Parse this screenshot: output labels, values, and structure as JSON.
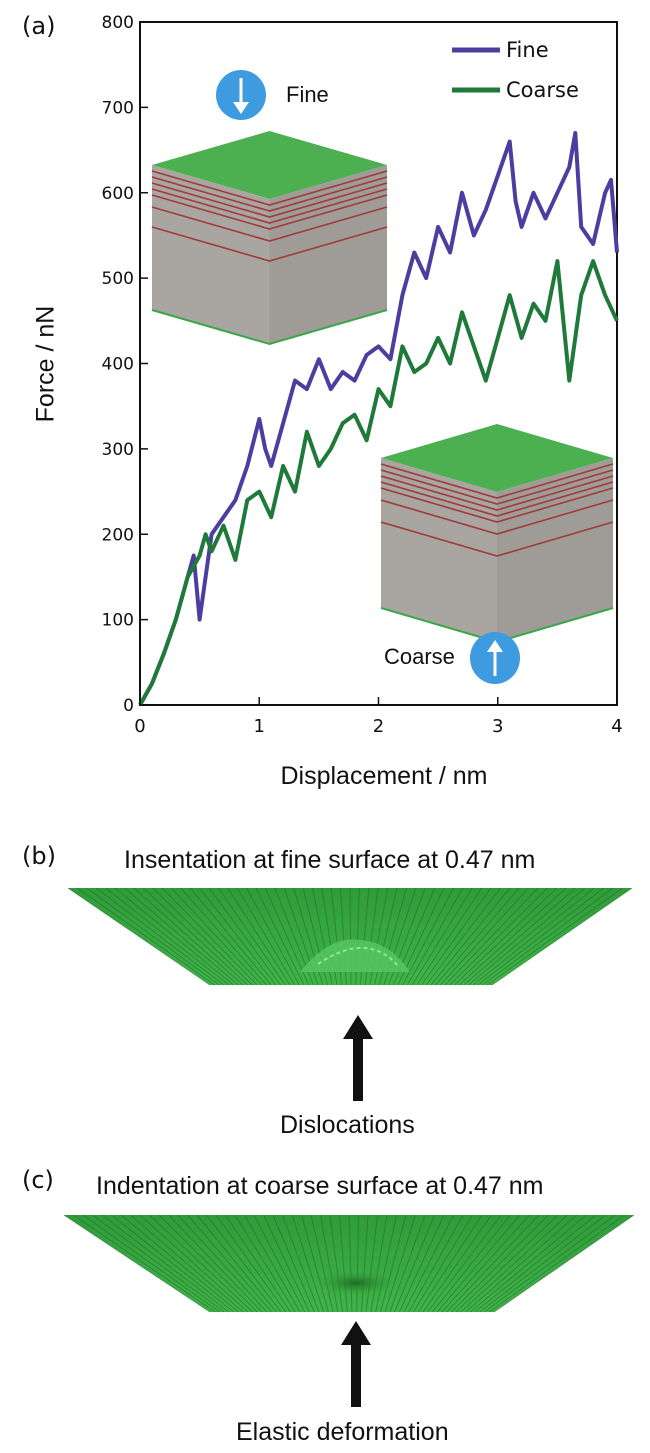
{
  "panels": {
    "a": {
      "label": "(a)"
    },
    "b": {
      "label": "(b)",
      "caption": "Insentation at fine surface at 0.47 nm",
      "arrow_label": "Dislocations"
    },
    "c": {
      "label": "(c)",
      "caption": "Indentation at coarse surface at 0.47 nm",
      "arrow_label": "Elastic deformation"
    }
  },
  "insets": {
    "fine_label": "Fine",
    "coarse_label": "Coarse",
    "colors": {
      "top": "#4caf50",
      "body": "#a9a6a1",
      "layer_line": "#a13a3a",
      "indicator": "#3f9be0"
    }
  },
  "chart_data": {
    "type": "line",
    "xlabel": "Displacement / nm",
    "ylabel": "Force / nN",
    "xlim": [
      0,
      4
    ],
    "ylim": [
      0,
      800
    ],
    "xticks": [
      "0",
      "1",
      "2",
      "3",
      "4"
    ],
    "yticks": [
      "0",
      "100",
      "200",
      "300",
      "400",
      "500",
      "600",
      "700",
      "800"
    ],
    "legend_position": "top-right",
    "grid": false,
    "series": [
      {
        "name": "Fine",
        "color": "#4a3fa0",
        "x": [
          0,
          0.1,
          0.2,
          0.3,
          0.4,
          0.45,
          0.5,
          0.55,
          0.6,
          0.7,
          0.8,
          0.9,
          1.0,
          1.05,
          1.1,
          1.2,
          1.3,
          1.4,
          1.5,
          1.6,
          1.7,
          1.8,
          1.9,
          2.0,
          2.1,
          2.2,
          2.3,
          2.4,
          2.5,
          2.6,
          2.7,
          2.8,
          2.9,
          3.0,
          3.1,
          3.15,
          3.2,
          3.3,
          3.4,
          3.5,
          3.6,
          3.65,
          3.7,
          3.8,
          3.9,
          3.95,
          4.0
        ],
        "y": [
          0,
          25,
          60,
          100,
          150,
          175,
          100,
          150,
          200,
          220,
          240,
          280,
          335,
          300,
          280,
          330,
          380,
          370,
          405,
          370,
          390,
          380,
          410,
          420,
          405,
          480,
          530,
          500,
          560,
          530,
          600,
          550,
          580,
          620,
          660,
          590,
          560,
          600,
          570,
          600,
          630,
          670,
          560,
          540,
          600,
          615,
          530
        ]
      },
      {
        "name": "Coarse",
        "color": "#1f7a3a",
        "x": [
          0,
          0.1,
          0.2,
          0.3,
          0.4,
          0.5,
          0.55,
          0.6,
          0.7,
          0.8,
          0.9,
          1.0,
          1.1,
          1.2,
          1.3,
          1.4,
          1.5,
          1.6,
          1.7,
          1.8,
          1.9,
          2.0,
          2.1,
          2.2,
          2.3,
          2.4,
          2.5,
          2.6,
          2.7,
          2.8,
          2.9,
          3.0,
          3.1,
          3.2,
          3.3,
          3.4,
          3.5,
          3.6,
          3.7,
          3.8,
          3.9,
          4.0
        ],
        "y": [
          0,
          25,
          60,
          100,
          150,
          175,
          200,
          180,
          210,
          170,
          240,
          250,
          220,
          280,
          250,
          320,
          280,
          300,
          330,
          340,
          310,
          370,
          350,
          420,
          390,
          400,
          430,
          400,
          460,
          420,
          380,
          430,
          480,
          430,
          470,
          450,
          520,
          380,
          480,
          520,
          480,
          450
        ]
      }
    ]
  }
}
